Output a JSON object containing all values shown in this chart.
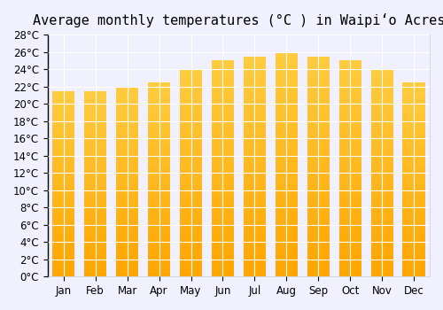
{
  "title": "Average monthly temperatures (°C ) in Waipiʻo Acres",
  "months": [
    "Jan",
    "Feb",
    "Mar",
    "Apr",
    "May",
    "Jun",
    "Jul",
    "Aug",
    "Sep",
    "Oct",
    "Nov",
    "Dec"
  ],
  "values": [
    21.5,
    21.5,
    22.0,
    22.5,
    24.0,
    25.0,
    25.5,
    26.0,
    25.5,
    25.0,
    24.0,
    22.5
  ],
  "ylim": [
    0,
    28
  ],
  "yticks": [
    0,
    2,
    4,
    6,
    8,
    10,
    12,
    14,
    16,
    18,
    20,
    22,
    24,
    26,
    28
  ],
  "bar_color_top": "#FFA500",
  "bar_color_bottom": "#FFD700",
  "background_color": "#f0f0ff",
  "grid_color": "#ffffff",
  "title_fontsize": 11,
  "tick_fontsize": 8.5
}
